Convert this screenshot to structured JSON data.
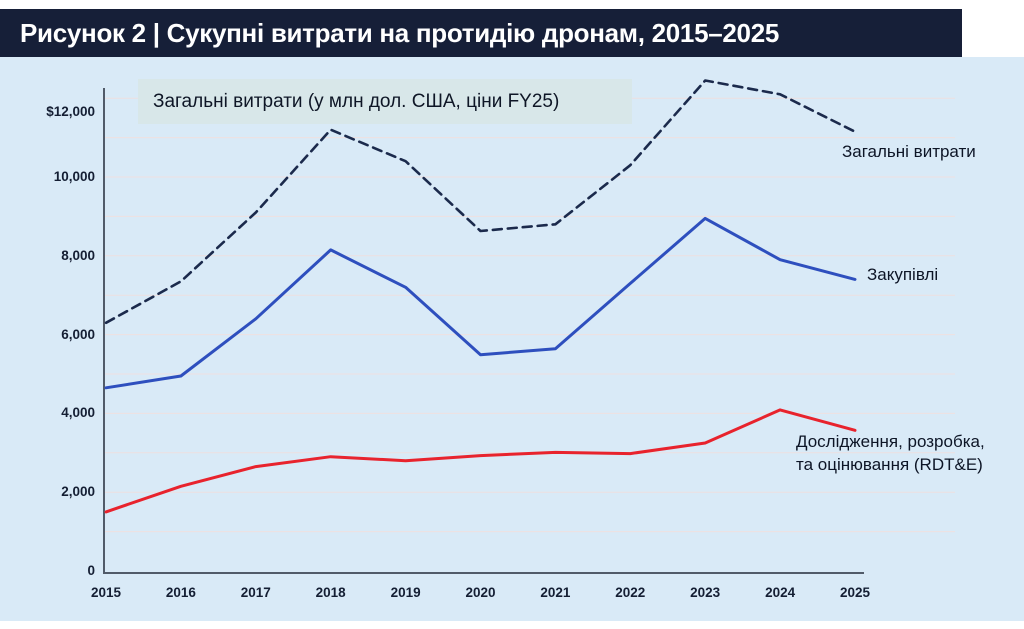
{
  "header": {
    "title": "Рисунок 2 | Сукупні витрати на протидію дронам, 2015–2025"
  },
  "chart_data": {
    "type": "line",
    "title": "Рисунок 2 | Сукупні витрати на протидію дронам, 2015–2025",
    "subtitle": "Загальні витрати (у млн дол. США, ціни FY25)",
    "x": [
      2015,
      2016,
      2017,
      2018,
      2019,
      2020,
      2021,
      2022,
      2023,
      2024,
      2025
    ],
    "xlabel": "",
    "ylabel": "млн дол. США (ціни FY25)",
    "ylim": [
      0,
      13000
    ],
    "grid": "horizontal, every 1000",
    "legend_position": "inline labels right of line ends",
    "series": [
      {
        "name": "Загальні витрати",
        "style": "dashed",
        "color": "#1b2a4c",
        "values": [
          6300,
          7350,
          9100,
          11200,
          10400,
          8630,
          8800,
          10300,
          12450,
          12100,
          11150
        ]
      },
      {
        "name": "Закупівлі",
        "style": "solid",
        "color": "#2e4fbe",
        "values": [
          4650,
          4950,
          6400,
          8150,
          7200,
          5490,
          5640,
          7300,
          8950,
          7900,
          7400
        ]
      },
      {
        "name": "Дослідження, розробка, та оцінювання (RDT&E)",
        "style": "solid",
        "color": "#e8232d",
        "values": [
          1500,
          2150,
          2650,
          2900,
          2800,
          2930,
          3010,
          2980,
          3250,
          4090,
          3570
        ]
      }
    ],
    "y_ticks": [
      {
        "value": 12000,
        "label": "$12,000"
      },
      {
        "value": 10000,
        "label": "10,000"
      },
      {
        "value": 8000,
        "label": "8,000"
      },
      {
        "value": 6000,
        "label": "6,000"
      },
      {
        "value": 4000,
        "label": "4,000"
      },
      {
        "value": 2000,
        "label": "2,000"
      },
      {
        "value": 0,
        "label": "0"
      }
    ]
  },
  "labels": {
    "total": "Загальні витрати",
    "procurement": "Закупівлі",
    "rdte": "Дослідження, розробка,\nта оцінювання (RDT&E)"
  },
  "colors": {
    "titlebar_bg": "#161f38",
    "canvas_bg": "#d9eaf7",
    "subtitle_bg": "#d8e7e9",
    "grid": "#eee0e0",
    "axis": "#515b69",
    "total": "#1b2a4c",
    "procurement": "#2e4fbe",
    "rdte": "#e8232d"
  }
}
